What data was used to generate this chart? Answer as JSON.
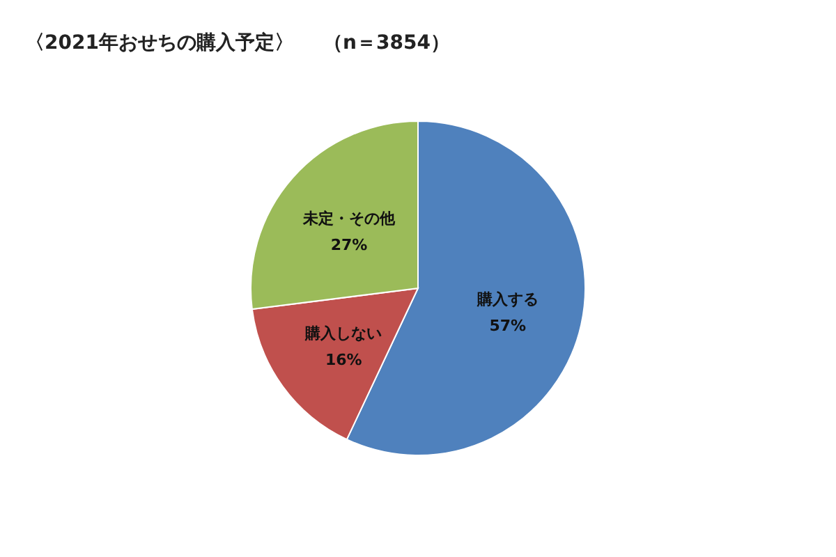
{
  "chart_data": {
    "type": "pie",
    "title": "〈2021年おせちの購入予定〉",
    "subtitle": "（n＝3854）",
    "categories": [
      "購入する",
      "購入しない",
      "未定・その他"
    ],
    "values": [
      57,
      16,
      27
    ],
    "value_labels": [
      "57%",
      "16%",
      "27%"
    ],
    "colors": [
      "#4f81bd",
      "#c0504d",
      "#9bbb59"
    ],
    "legend": false
  }
}
